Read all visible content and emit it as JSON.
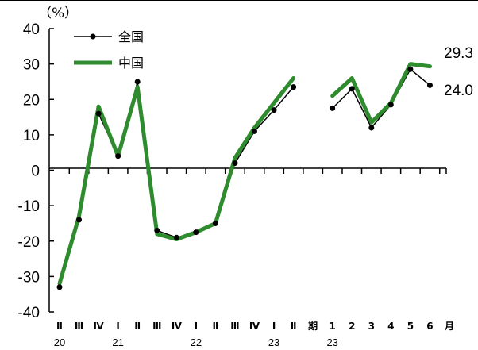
{
  "chart_data": {
    "type": "line",
    "unit_label": "（%）",
    "ylim": [
      -40,
      40
    ],
    "yticks": [
      40,
      30,
      20,
      10,
      0,
      -10,
      -20,
      -30,
      -40
    ],
    "categories": [
      "Ⅱ",
      "Ⅲ",
      "Ⅳ",
      "Ⅰ",
      "Ⅱ",
      "Ⅲ",
      "Ⅳ",
      "Ⅰ",
      "Ⅱ",
      "Ⅲ",
      "Ⅳ",
      "Ⅰ",
      "Ⅱ",
      "期",
      "1",
      "2",
      "3",
      "4",
      "5",
      "6",
      "月"
    ],
    "year_labels": [
      {
        "index": 0,
        "label": "20"
      },
      {
        "index": 3,
        "label": "21"
      },
      {
        "index": 7,
        "label": "22"
      },
      {
        "index": 11,
        "label": "23"
      },
      {
        "index": 14,
        "label": "23"
      }
    ],
    "series": [
      {
        "name": "全国",
        "color": "#000000",
        "segments": [
          [
            [
              0,
              -33
            ],
            [
              1,
              -14
            ],
            [
              2,
              16
            ],
            [
              3,
              4
            ],
            [
              4,
              25
            ],
            [
              5,
              -17
            ],
            [
              6,
              -19
            ],
            [
              7,
              -17.5
            ],
            [
              8,
              -15
            ],
            [
              9,
              2
            ],
            [
              10,
              11
            ],
            [
              11,
              17
            ],
            [
              12,
              23.5
            ]
          ],
          [
            [
              14,
              17.5
            ],
            [
              15,
              23
            ],
            [
              16,
              12
            ],
            [
              17,
              18.5
            ],
            [
              18,
              28.5
            ],
            [
              19,
              24
            ]
          ]
        ]
      },
      {
        "name": "中国",
        "color": "#2e8b2e",
        "segments": [
          [
            [
              0,
              -32
            ],
            [
              1,
              -13
            ],
            [
              2,
              18
            ],
            [
              3,
              4
            ],
            [
              4,
              23.5
            ],
            [
              5,
              -18
            ],
            [
              6,
              -19.5
            ],
            [
              7,
              -17.5
            ],
            [
              8,
              -15
            ],
            [
              9,
              3.5
            ],
            [
              10,
              12
            ],
            [
              11,
              19
            ],
            [
              12,
              26
            ]
          ],
          [
            [
              14,
              21
            ],
            [
              15,
              26
            ],
            [
              16,
              13.5
            ],
            [
              17,
              19
            ],
            [
              18,
              30
            ],
            [
              19,
              29.3
            ]
          ]
        ]
      }
    ],
    "end_labels": [
      {
        "series": "中国",
        "text": "29.3"
      },
      {
        "series": "全国",
        "text": "24.0"
      }
    ],
    "legend": {
      "placement": "top-left"
    },
    "grid": false
  }
}
